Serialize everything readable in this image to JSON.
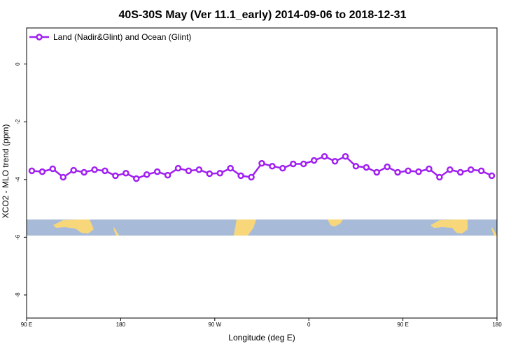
{
  "chart_data": {
    "type": "line",
    "title": "40S-30S May (Ver 11.1_early)   2014-09-06 to 2018-12-31",
    "xlabel": "Longitude (deg E)",
    "ylabel": "XCO2 - MLO trend (ppm)",
    "x": [
      95,
      105,
      115,
      125,
      135,
      145,
      155,
      165,
      175,
      185,
      195,
      205,
      215,
      225,
      235,
      245,
      255,
      265,
      275,
      285,
      295,
      305,
      315,
      325,
      335,
      345,
      355,
      365,
      375,
      385,
      395,
      405,
      415,
      425,
      435,
      445,
      455,
      465,
      475,
      485,
      495,
      505,
      515,
      525,
      535
    ],
    "series": [
      {
        "name": "Land (Nadir&Glint) and Ocean (Glint)",
        "color": "#a020f0",
        "values": [
          -3.7,
          -3.73,
          -3.63,
          -3.92,
          -3.68,
          -3.75,
          -3.66,
          -3.7,
          -3.87,
          -3.78,
          -3.97,
          -3.83,
          -3.73,
          -3.85,
          -3.61,
          -3.7,
          -3.66,
          -3.8,
          -3.78,
          -3.61,
          -3.87,
          -3.92,
          -3.44,
          -3.54,
          -3.61,
          -3.46,
          -3.46,
          -3.34,
          -3.2,
          -3.37,
          -3.2,
          -3.54,
          -3.58,
          -3.75,
          -3.56,
          -3.75,
          -3.7,
          -3.73,
          -3.63,
          -3.92,
          -3.66,
          -3.75,
          -3.66,
          -3.7,
          -3.87
        ]
      }
    ],
    "xlim": [
      90,
      540
    ],
    "xticks": [
      {
        "value": 90,
        "label": "90 E"
      },
      180,
      {
        "value": 270,
        "label": "90 W"
      },
      {
        "value": 360,
        "label": "0"
      },
      {
        "value": 450,
        "label": "90 E"
      },
      {
        "value": 540,
        "label": "180"
      }
    ],
    "ylim": [
      -8.8,
      1.25
    ],
    "yticks": [
      0,
      -2,
      -4,
      -6,
      -8
    ],
    "legend": "top-left"
  }
}
